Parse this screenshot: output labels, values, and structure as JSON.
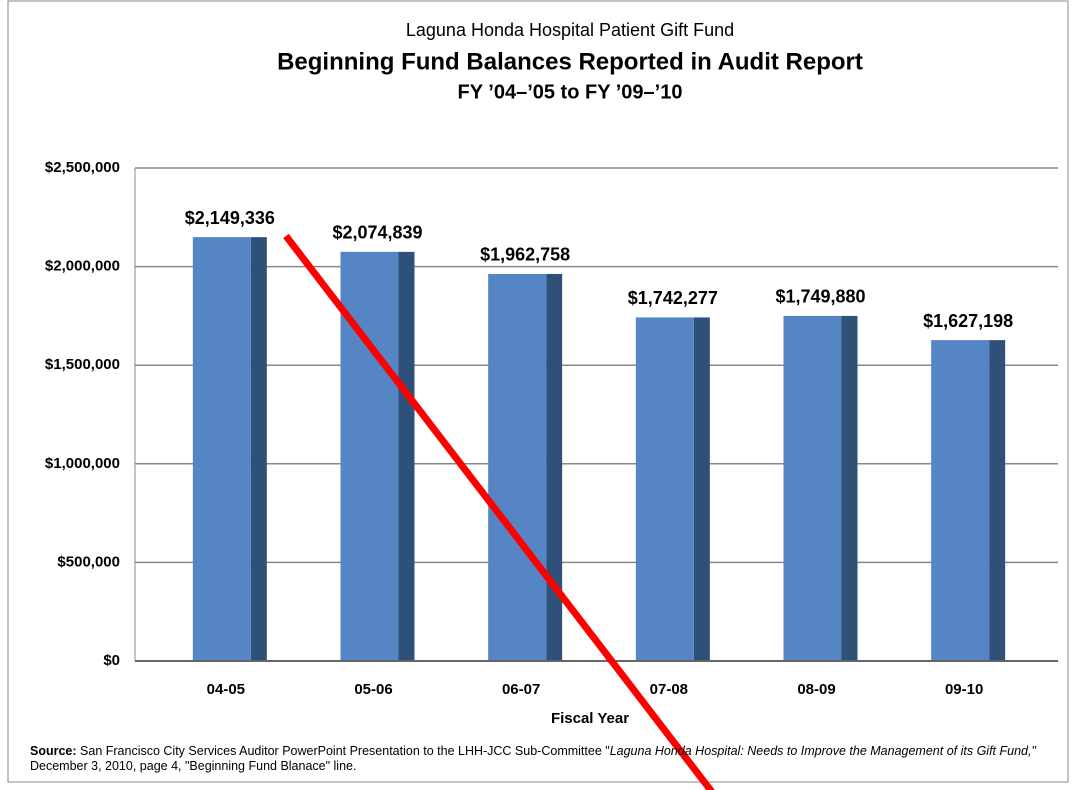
{
  "chart_data": {
    "type": "bar",
    "titles": [
      "Laguna Honda Hospital Patient Gift Fund",
      "Beginning Fund Balances Reported in Audit Report",
      "FY ’04–’05 to FY ’09–’10"
    ],
    "x_label": "Fiscal Year",
    "categories": [
      "04-05",
      "05-06",
      "06-07",
      "07-08",
      "08-09",
      "09-10"
    ],
    "values": [
      2149336,
      2074839,
      1962758,
      1742277,
      1749880,
      1627198
    ],
    "value_labels": [
      "$2,149,336",
      "$2,074,839",
      "$1,962,758",
      "$1,742,277",
      "$1,749,880",
      "$1,627,198"
    ],
    "color": "#5585c5",
    "ylim": [
      0,
      2500000
    ],
    "yticks": [
      {
        "value": 0,
        "label": "$0"
      },
      {
        "value": 500000,
        "label": "$500,000"
      },
      {
        "value": 1000000,
        "label": "$1,000,000"
      },
      {
        "value": 1500000,
        "label": "$1,500,000"
      },
      {
        "value": 2000000,
        "label": "$2,000,000"
      },
      {
        "value": 2500000,
        "label": "$2,500,000"
      }
    ],
    "grid": true,
    "source": {
      "label": "Source:",
      "parts": [
        {
          "text": "San Francisco City Services Auditor PowerPoint Presentation to the LHH-JCC Sub-Committee \"",
          "italic": false
        },
        {
          "text": "Laguna Honda Hospital: Needs to Improve the Management of its Gift Fund,\"",
          "italic": true
        },
        {
          "text": " December 3, 2010, page 4, \"Beginning Fund Blanace\" line.",
          "italic": false
        }
      ]
    }
  }
}
